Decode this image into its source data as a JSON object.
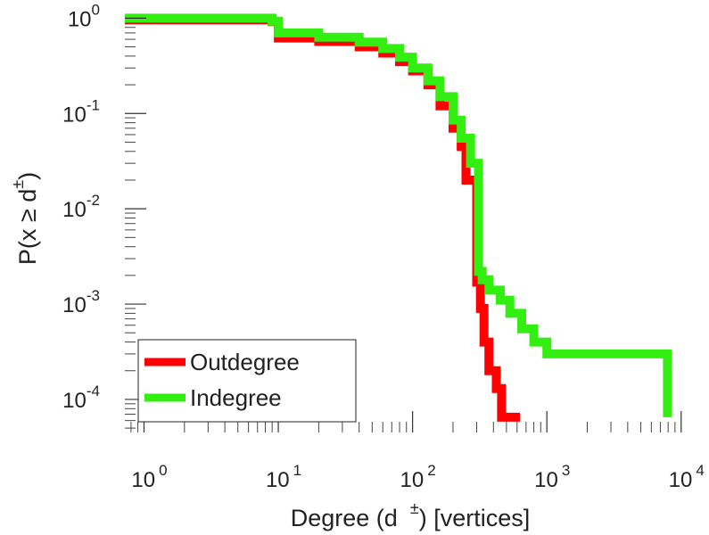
{
  "chart_data": {
    "type": "line",
    "title": "",
    "xlabel": "Degree (d ± ) [vertices]",
    "xlabel_parts": {
      "pre": "Degree (d",
      "sup": "±",
      "post": ") [vertices]"
    },
    "ylabel": "P(x ≥ d±)",
    "ylabel_parts": {
      "pre": "P(x ≥ d",
      "sup": "±",
      "post": ")"
    },
    "xscale": "log",
    "yscale": "log",
    "xlim": [
      0.72,
      11000
    ],
    "ylim": [
      4.5e-05,
      1.25
    ],
    "x_ticks": [
      {
        "value": 1,
        "base": "10",
        "exp": "0"
      },
      {
        "value": 10,
        "base": "10",
        "exp": "1"
      },
      {
        "value": 100,
        "base": "10",
        "exp": "2"
      },
      {
        "value": 1000,
        "base": "10",
        "exp": "3"
      },
      {
        "value": 10000,
        "base": "10",
        "exp": "4"
      }
    ],
    "y_ticks": [
      {
        "value": 1,
        "base": "10",
        "exp": "0"
      },
      {
        "value": 0.1,
        "base": "10",
        "exp": "-1"
      },
      {
        "value": 0.01,
        "base": "10",
        "exp": "-2"
      },
      {
        "value": 0.001,
        "base": "10",
        "exp": "-3"
      },
      {
        "value": 0.0001,
        "base": "10",
        "exp": "-4"
      }
    ],
    "legend_position": "bottom-left",
    "series": [
      {
        "name": "Outdegree",
        "color": "#ff0000",
        "points": [
          [
            0.72,
            0.96
          ],
          [
            9,
            0.92
          ],
          [
            10,
            0.62
          ],
          [
            20,
            0.57
          ],
          [
            40,
            0.5
          ],
          [
            60,
            0.43
          ],
          [
            80,
            0.35
          ],
          [
            100,
            0.28
          ],
          [
            130,
            0.2
          ],
          [
            160,
            0.12
          ],
          [
            200,
            0.07
          ],
          [
            230,
            0.045
          ],
          [
            250,
            0.02
          ],
          [
            290,
            0.02
          ],
          [
            300,
            0.0017
          ],
          [
            320,
            0.0009
          ],
          [
            340,
            0.0004
          ],
          [
            370,
            0.0002
          ],
          [
            420,
            0.00013
          ],
          [
            460,
            6.5e-05
          ],
          [
            630,
            6.5e-05
          ]
        ]
      },
      {
        "name": "Indegree",
        "color": "#33ee11",
        "points": [
          [
            0.72,
            1.0
          ],
          [
            9,
            0.93
          ],
          [
            10,
            0.7
          ],
          [
            20,
            0.63
          ],
          [
            40,
            0.56
          ],
          [
            60,
            0.48
          ],
          [
            80,
            0.39
          ],
          [
            100,
            0.3
          ],
          [
            130,
            0.22
          ],
          [
            160,
            0.15
          ],
          [
            200,
            0.085
          ],
          [
            230,
            0.055
          ],
          [
            270,
            0.03
          ],
          [
            300,
            0.03
          ],
          [
            310,
            0.0022
          ],
          [
            330,
            0.0018
          ],
          [
            370,
            0.0014
          ],
          [
            450,
            0.0011
          ],
          [
            530,
            0.0008
          ],
          [
            650,
            0.00055
          ],
          [
            800,
            0.0004
          ],
          [
            1000,
            0.0003
          ],
          [
            7800,
            0.0003
          ],
          [
            7900,
            6.5e-05
          ]
        ]
      }
    ]
  }
}
